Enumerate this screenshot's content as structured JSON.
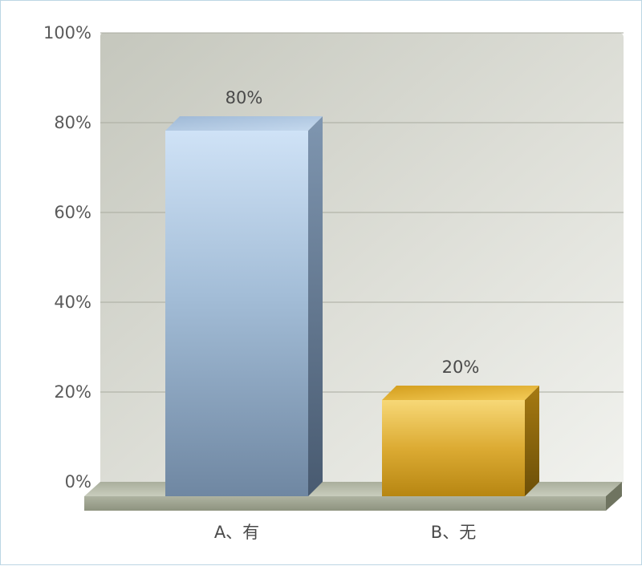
{
  "chart_data": {
    "type": "bar",
    "categories": [
      "A、有",
      "B、无"
    ],
    "values": [
      80,
      20
    ],
    "value_labels": [
      "80%",
      "20%"
    ],
    "ylim": [
      0,
      100
    ],
    "yticks": [
      0,
      20,
      40,
      60,
      80,
      100
    ],
    "ytick_labels": [
      "0%",
      "20%",
      "40%",
      "60%",
      "80%",
      "100%"
    ],
    "grid": true,
    "style": "3d",
    "colors": {
      "bar_1": "#9fb7d0",
      "bar_2": "#e3b43a",
      "plot_background": "#d6d7cf",
      "gridline": "#a9ab9f"
    }
  }
}
